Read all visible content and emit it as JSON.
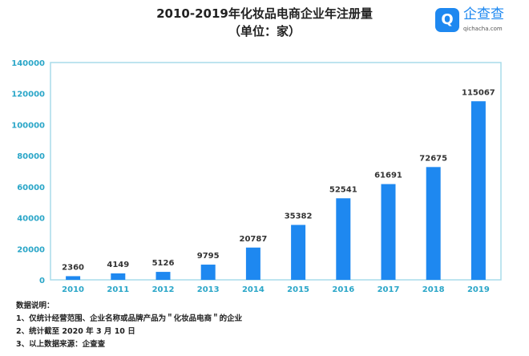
{
  "logo": {
    "name": "企查查",
    "domain": "qichacha.com"
  },
  "notes": {
    "heading": "数据说明：",
    "lines": [
      "1、仅统计经营范围、企业名称或品牌产品为＂化妆品电商＂的企业",
      "2、统计截至 2020 年 3 月 10 日",
      "3、以上数据来源：企查查"
    ]
  },
  "colors": {
    "bar": "#1e88f0",
    "axis_text": "#2aa6c8",
    "frame": "#a8dcea"
  },
  "chart_data": {
    "type": "bar",
    "title": "2010-2019年化妆品电商企业年注册量",
    "subtitle": "（单位：家）",
    "categories": [
      "2010",
      "2011",
      "2012",
      "2013",
      "2014",
      "2015",
      "2016",
      "2017",
      "2018",
      "2019"
    ],
    "values": [
      2360,
      4149,
      5126,
      9795,
      20787,
      35382,
      52541,
      61691,
      72675,
      115067
    ],
    "yticks": [
      "0",
      "20000",
      "40000",
      "60000",
      "80000",
      "100000",
      "120000",
      "140000"
    ],
    "ylim": [
      0,
      140000
    ],
    "xlabel": "",
    "ylabel": "",
    "grid": false
  }
}
